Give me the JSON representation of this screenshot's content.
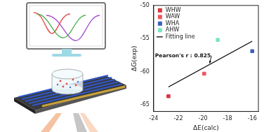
{
  "chart_data": {
    "type": "scatter",
    "x_label": "ΔE(calc)",
    "y_label": "ΔG(exp)",
    "xlim": [
      -24,
      -15.5
    ],
    "xticks": [
      -24,
      -22,
      -20,
      -18,
      -16
    ],
    "ylim": [
      -66,
      -50
    ],
    "yticks": [
      -65,
      -60,
      -55,
      -50
    ],
    "grid": false,
    "legend": "upper left",
    "annotations": [
      "Pearson's r : 0.825"
    ],
    "series": [
      {
        "name": "WHW",
        "color": "#d9343f",
        "marker": "square",
        "x": [
          -22.8
        ],
        "values": [
          -63.7
        ]
      },
      {
        "name": "WAW",
        "color": "#f2555e",
        "marker": "square",
        "x": [
          -19.9
        ],
        "values": [
          -60.3
        ]
      },
      {
        "name": "WHA",
        "color": "#3f5fc0",
        "marker": "square",
        "x": [
          -16.0
        ],
        "values": [
          -56.9
        ]
      },
      {
        "name": "AHW",
        "color": "#7fe3c4",
        "marker": "square",
        "x": [
          -18.8
        ],
        "values": [
          -55.2
        ]
      },
      {
        "name": "Fitting line",
        "color": "#000000",
        "type": "line",
        "line_style": "solid",
        "x": [
          -22.8,
          -16.0
        ],
        "values": [
          -62.3,
          -55.4
        ]
      }
    ]
  }
}
